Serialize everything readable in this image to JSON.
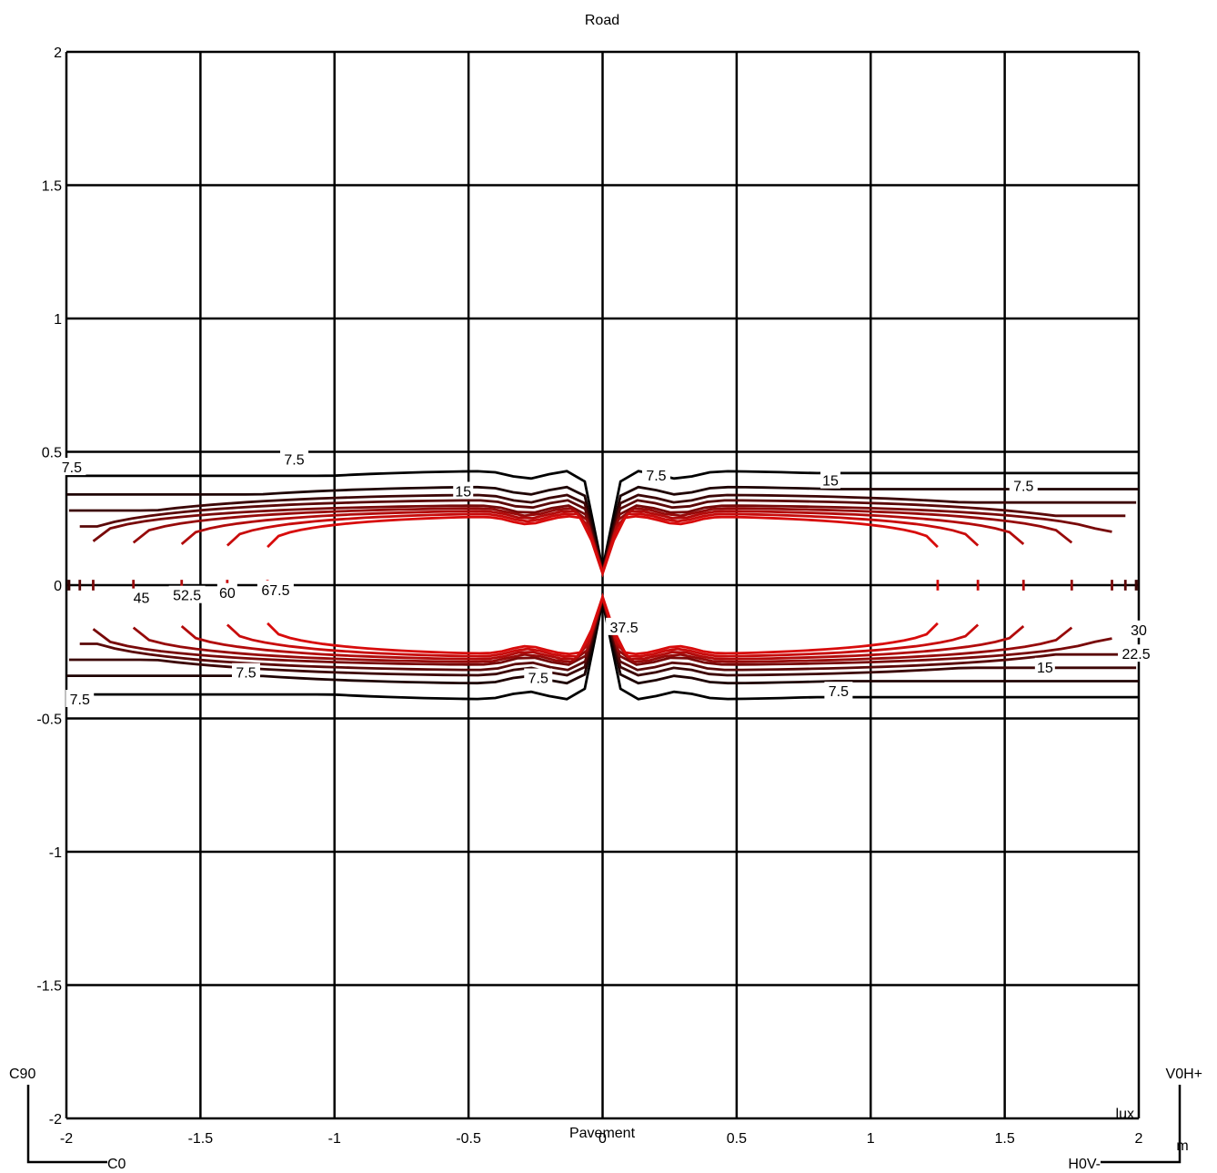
{
  "chart_data": {
    "type": "contour",
    "top_label": "Road",
    "bottom_label": "Pavement",
    "unit_label": "lux",
    "axis_unit": "m",
    "xlim": [
      -2,
      2
    ],
    "ylim": [
      -2,
      2
    ],
    "grid": true,
    "x_ticks": [
      {
        "v": -2,
        "label": "-2"
      },
      {
        "v": -1.5,
        "label": "-1.5"
      },
      {
        "v": -1,
        "label": "-1"
      },
      {
        "v": -0.5,
        "label": "-0.5"
      },
      {
        "v": 0,
        "label": "0"
      },
      {
        "v": 0.5,
        "label": "0.5"
      },
      {
        "v": 1,
        "label": "1"
      },
      {
        "v": 1.5,
        "label": "1.5"
      },
      {
        "v": 2,
        "label": "2"
      }
    ],
    "y_ticks": [
      {
        "v": 2,
        "label": "2"
      },
      {
        "v": 1.5,
        "label": "1.5"
      },
      {
        "v": 1,
        "label": "1"
      },
      {
        "v": 0.5,
        "label": "0.5"
      },
      {
        "v": 0,
        "label": "0"
      },
      {
        "v": -0.5,
        "label": "-0.5"
      },
      {
        "v": -1,
        "label": "-1"
      },
      {
        "v": -1.5,
        "label": "-1.5"
      },
      {
        "v": -2,
        "label": "-2"
      }
    ],
    "orientation": {
      "left_top": "C90",
      "left_bottom": "C0",
      "right_top": "V0H+",
      "right_bottom": "H0V-"
    },
    "levels": [
      7.5,
      15,
      22.5,
      30,
      37.5,
      45,
      52.5,
      60,
      67.5
    ],
    "level_colors": [
      "#000000",
      "#1e0303",
      "#3c0606",
      "#5a0808",
      "#780909",
      "#960a0a",
      "#b20b0b",
      "#c80c0c",
      "#d80c0c"
    ],
    "contours": [
      {
        "level": 7.5,
        "x_end": 2.0,
        "y_lobe": 0.43,
        "y_left": 0.41,
        "y_right": 0.42
      },
      {
        "level": 15,
        "x_end": 2.0,
        "y_lobe": 0.37,
        "y_left": 0.34,
        "y_right": 0.36
      },
      {
        "level": 22.5,
        "x_end": 1.99,
        "y_lobe": 0.34,
        "y_left": 0.28,
        "y_right": 0.31
      },
      {
        "level": 30,
        "x_end": 1.95,
        "y_lobe": 0.32,
        "y_left": 0.22,
        "y_right": 0.26
      },
      {
        "level": 37.5,
        "x_end": 1.9,
        "y_lobe": 0.3,
        "y_left": 0.16,
        "y_right": 0.2
      },
      {
        "level": 45,
        "x_end": 1.75,
        "y_lobe": 0.29,
        "y_left": 0.1,
        "y_right": 0.14
      },
      {
        "level": 52.5,
        "x_end": 1.57,
        "y_lobe": 0.28,
        "y_left": 0.06,
        "y_right": 0.08
      },
      {
        "level": 60,
        "x_end": 1.4,
        "y_lobe": 0.27,
        "y_left": 0.03,
        "y_right": 0.04
      },
      {
        "level": 67.5,
        "x_end": 1.25,
        "y_lobe": 0.26,
        "y_left": 0.01,
        "y_right": 0.015
      }
    ],
    "contour_labels": [
      {
        "text": "7.5",
        "x": -1.15,
        "y": 0.47
      },
      {
        "text": "7.5",
        "x": 0.2,
        "y": 0.41
      },
      {
        "text": "7.5",
        "x": 1.57,
        "y": 0.37
      },
      {
        "text": "15",
        "x": -0.52,
        "y": 0.35
      },
      {
        "text": "15",
        "x": 0.85,
        "y": 0.39
      },
      {
        "text": "45",
        "x": -1.72,
        "y": -0.05
      },
      {
        "text": "52.5",
        "x": -1.55,
        "y": -0.04
      },
      {
        "text": "60",
        "x": -1.4,
        "y": -0.03
      },
      {
        "text": "67.5",
        "x": -1.22,
        "y": -0.02
      },
      {
        "text": "37.5",
        "x": 0.08,
        "y": -0.16
      },
      {
        "text": "7.5",
        "x": -1.33,
        "y": -0.33
      },
      {
        "text": "7.5",
        "x": -0.24,
        "y": -0.35
      },
      {
        "text": "7.5",
        "x": 0.88,
        "y": -0.4
      },
      {
        "text": "7.5",
        "x": -1.95,
        "y": -0.43
      },
      {
        "text": "15",
        "x": 1.65,
        "y": -0.31
      },
      {
        "text": "22.5",
        "x": 1.99,
        "y": -0.26
      },
      {
        "text": "30",
        "x": 2.0,
        "y": -0.17
      },
      {
        "text": "7.5",
        "x": -1.98,
        "y": 0.44
      }
    ]
  }
}
